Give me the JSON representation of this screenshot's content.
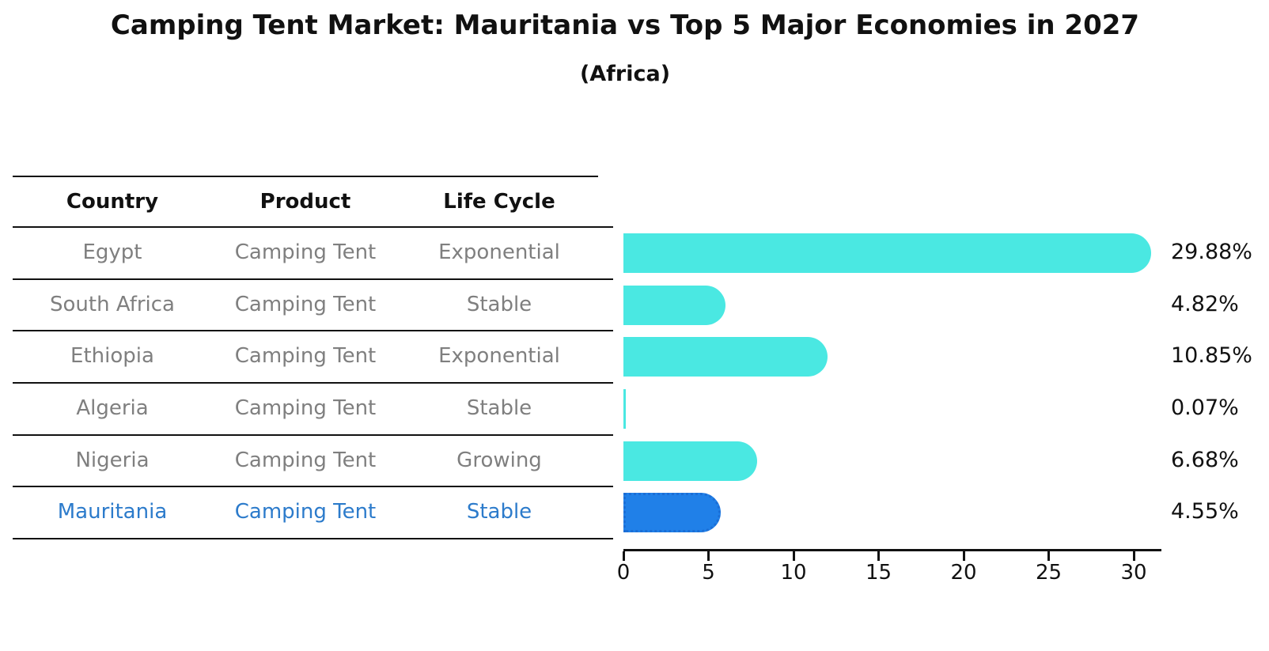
{
  "title": "Camping Tent Market: Mauritania vs Top 5 Major Economies in 2027",
  "subtitle": "(Africa)",
  "table": {
    "headers": [
      "Country",
      "Product",
      "Life Cycle"
    ],
    "rows": [
      {
        "country": "Egypt",
        "product": "Camping Tent",
        "life_cycle": "Exponential",
        "highlight": false
      },
      {
        "country": "South Africa",
        "product": "Camping Tent",
        "life_cycle": "Stable",
        "highlight": false
      },
      {
        "country": "Ethiopia",
        "product": "Camping Tent",
        "life_cycle": "Exponential",
        "highlight": false
      },
      {
        "country": "Algeria",
        "product": "Camping Tent",
        "life_cycle": "Stable",
        "highlight": false
      },
      {
        "country": "Nigeria",
        "product": "Camping Tent",
        "life_cycle": "Growing",
        "highlight": false
      },
      {
        "country": "Mauritania",
        "product": "Camping Tent",
        "life_cycle": "Stable",
        "highlight": true
      }
    ]
  },
  "chart_data": {
    "type": "bar",
    "orientation": "horizontal",
    "title": "Camping Tent Market: Mauritania vs Top 5 Major Economies in 2027",
    "subtitle": "(Africa)",
    "categories": [
      "Egypt",
      "South Africa",
      "Ethiopia",
      "Algeria",
      "Nigeria",
      "Mauritania"
    ],
    "values": [
      29.88,
      4.82,
      10.85,
      0.07,
      6.68,
      4.55
    ],
    "value_labels": [
      "29.88%",
      "4.82%",
      "10.85%",
      "0.07%",
      "6.68%",
      "4.55%"
    ],
    "highlight_index": 5,
    "xlabel": "",
    "ylabel": "",
    "xlim": [
      0,
      31.6
    ],
    "x_ticks": [
      0,
      5,
      10,
      15,
      20,
      25,
      30
    ],
    "grid": false,
    "legend": "none",
    "bar_color": "#4ae8e2",
    "highlight_bar_color": "#2080e8",
    "highlight_border_color": "#1b6ed6",
    "highlight_text_color": "#2c7bcb",
    "table_text_color": "#7f7f7f",
    "axis_color": "#111111"
  }
}
